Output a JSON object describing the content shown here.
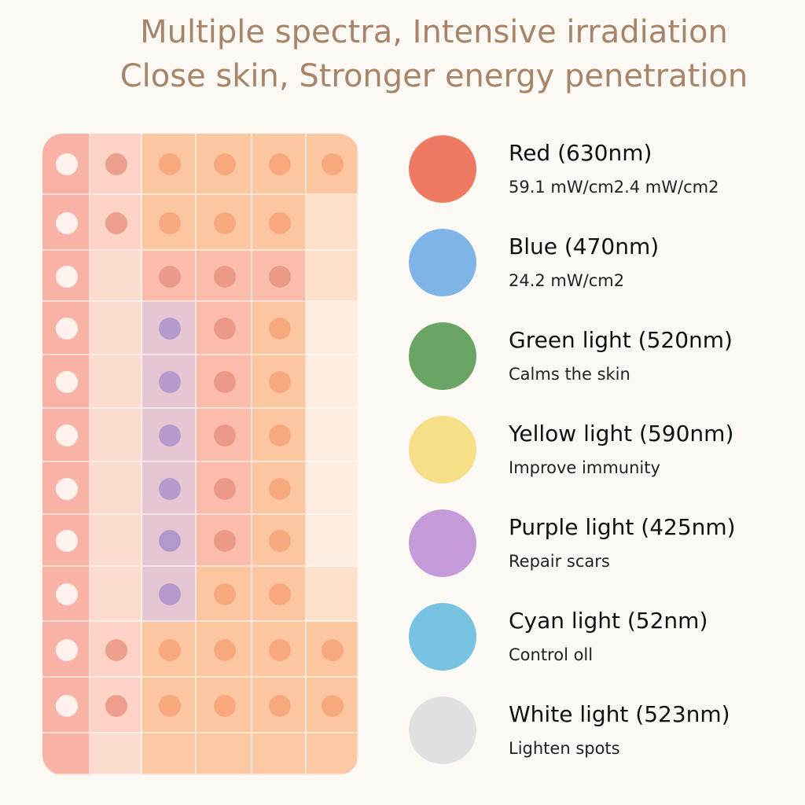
{
  "header": {
    "line1": "Multiple spectra, Intensive irradiation",
    "line2": "Close skin, Stronger energy penetration"
  },
  "colors": {
    "title": "#a88468",
    "red": "#ef7a63",
    "blue": "#7fb4e6",
    "green": "#6aa566",
    "yellow": "#f6df87",
    "purple": "#c59cd9",
    "cyan": "#78c3e1",
    "white": "#e1e1e3"
  },
  "legend": [
    {
      "name": "Red (630nm)",
      "desc": "59.1 mW/cm2.4 mW/cm2",
      "color_key": "red"
    },
    {
      "name": "Blue (470nm)",
      "desc": "24.2 mW/cm2",
      "color_key": "blue"
    },
    {
      "name": "Green light (520nm)",
      "desc": "Calms the skin",
      "color_key": "green"
    },
    {
      "name": "Yellow light (590nm)",
      "desc": "Improve immunity",
      "color_key": "yellow"
    },
    {
      "name": "Purple light (425nm)",
      "desc": "Repair scars",
      "color_key": "purple"
    },
    {
      "name": "Cyan light (52nm)",
      "desc": "Control oll",
      "color_key": "cyan"
    },
    {
      "name": "White light (523nm)",
      "desc": "Lighten spots",
      "color_key": "white"
    }
  ],
  "led_panel": {
    "rows": [
      [
        "W",
        "R",
        "O",
        "O",
        "O",
        "O"
      ],
      [
        "W",
        "R",
        "O",
        "O",
        "O",
        "-"
      ],
      [
        "W",
        "-",
        "R",
        "R",
        "R",
        "-"
      ],
      [
        "W",
        "-",
        "P",
        "R",
        "O",
        "-"
      ],
      [
        "W",
        "-",
        "P",
        "R",
        "O",
        "-"
      ],
      [
        "W",
        "-",
        "P",
        "R",
        "O",
        "-"
      ],
      [
        "W",
        "-",
        "P",
        "R",
        "O",
        "-"
      ],
      [
        "W",
        "-",
        "P",
        "R",
        "O",
        "-"
      ],
      [
        "W",
        "-",
        "P",
        "O",
        "O",
        "-"
      ],
      [
        "W",
        "R",
        "O",
        "O",
        "O",
        "O"
      ],
      [
        "W",
        "R",
        "O",
        "O",
        "O",
        "O"
      ],
      [
        "-",
        "-",
        "-",
        "-",
        "-",
        "-"
      ]
    ]
  }
}
